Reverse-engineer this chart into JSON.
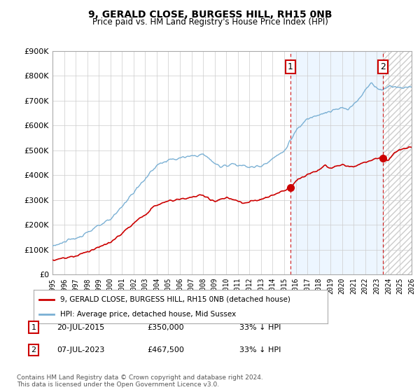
{
  "title": "9, GERALD CLOSE, BURGESS HILL, RH15 0NB",
  "subtitle": "Price paid vs. HM Land Registry's House Price Index (HPI)",
  "legend_label_red": "9, GERALD CLOSE, BURGESS HILL, RH15 0NB (detached house)",
  "legend_label_blue": "HPI: Average price, detached house, Mid Sussex",
  "footnote": "Contains HM Land Registry data © Crown copyright and database right 2024.\nThis data is licensed under the Open Government Licence v3.0.",
  "transactions": [
    {
      "num": 1,
      "date": "20-JUL-2015",
      "price": 350000,
      "label": "33% ↓ HPI",
      "year": 2015.55
    },
    {
      "num": 2,
      "date": "07-JUL-2023",
      "price": 467500,
      "label": "33% ↓ HPI",
      "year": 2023.52
    }
  ],
  "ylim": [
    0,
    900000
  ],
  "xlim": [
    1995,
    2026
  ],
  "yticks": [
    0,
    100000,
    200000,
    300000,
    400000,
    500000,
    600000,
    700000,
    800000,
    900000
  ],
  "red_color": "#cc0000",
  "blue_color": "#7ab0d4",
  "blue_fill_color": "#ddeeff",
  "dashed_color": "#cc0000",
  "background_color": "#ffffff",
  "grid_color": "#cccccc",
  "hatch_color": "#cccccc"
}
